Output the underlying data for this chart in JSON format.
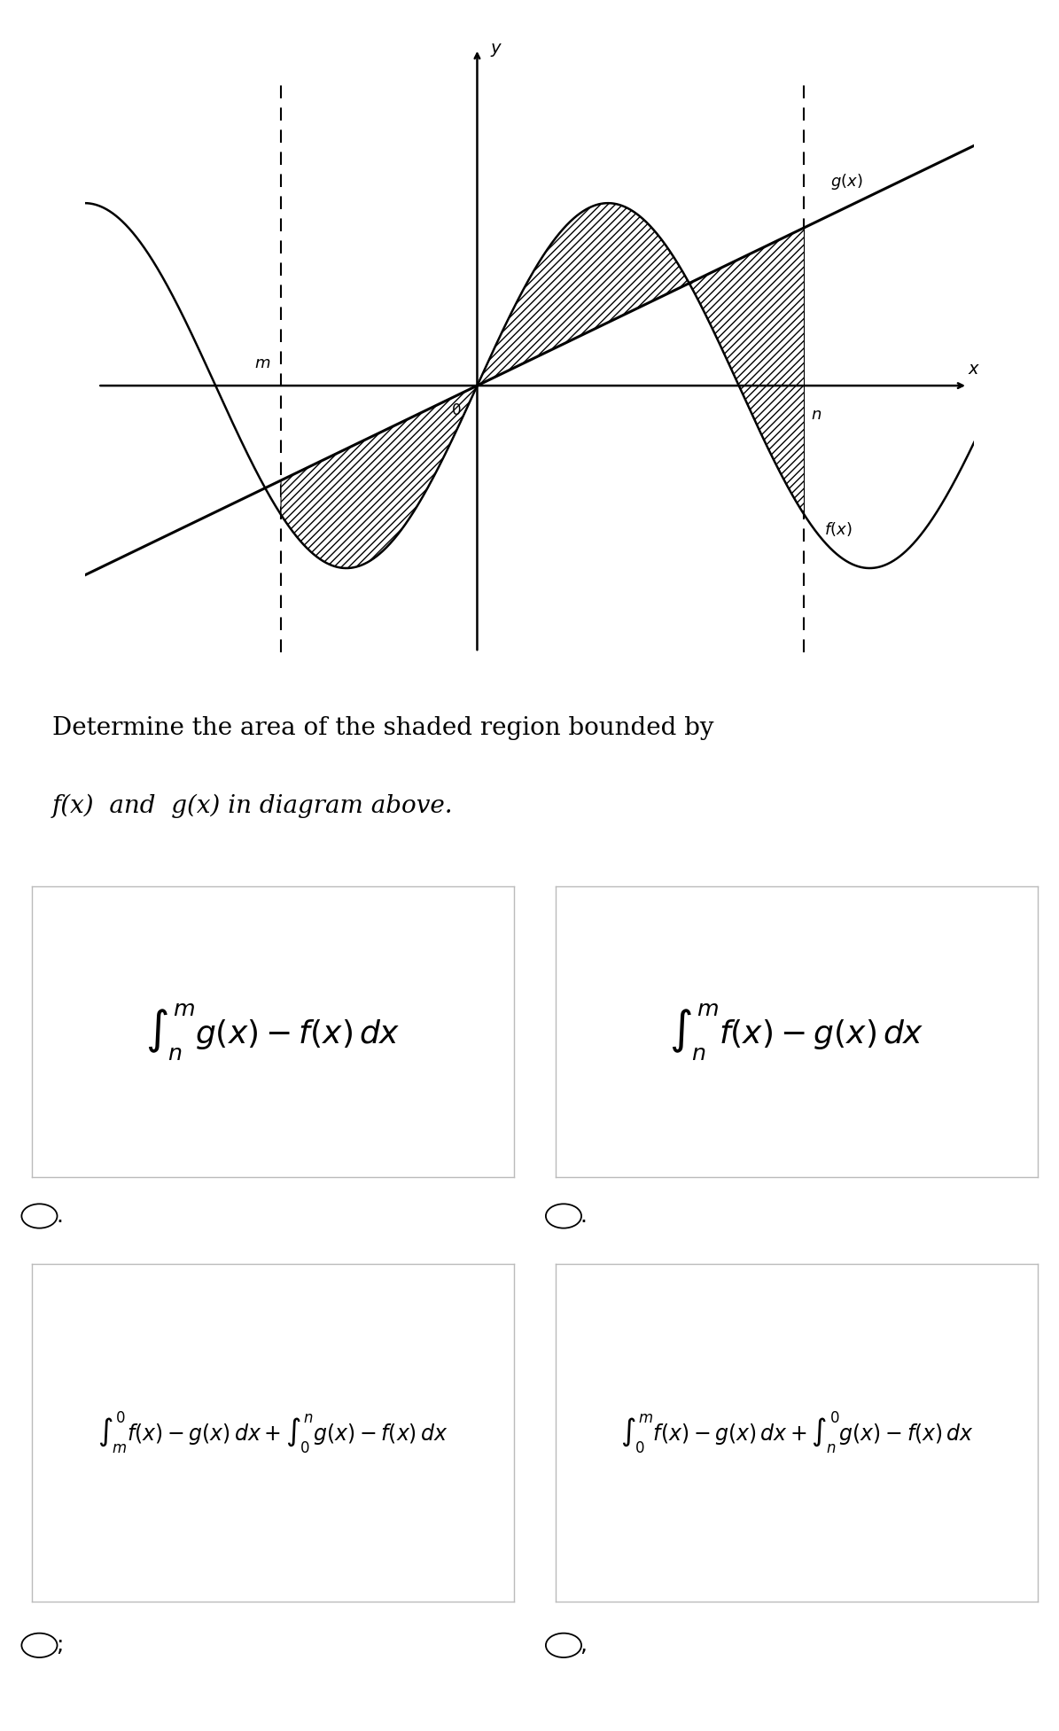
{
  "bg_color": "#ffffff",
  "graph_title_line1": "Determine the area of the shaded region bounded by",
  "graph_title_line2": "f(x)  and  g(x) in diagram above.",
  "option_formulas": [
    "$\\int_{n}^{m} g(x)-f(x)\\,dx$",
    "$\\int_{n}^{m} f(x)-g(x)\\,dx$",
    "$\\int_{m}^{0} f(x)-g(x)\\,dx+\\int_{0}^{n} g(x)-f(x)\\,dx$",
    "$\\int_{0}^{m} f(x)-g(x)\\,dx+\\int_{n}^{0} g(x)-f(x)\\,dx$"
  ],
  "option_labels": [
    ".",
    ".",
    ";",
    ","
  ],
  "m_val": -1.5,
  "n_val": 2.5,
  "f_amplitude": 1.0,
  "g_slope": 0.45,
  "xlim": [
    -3.0,
    3.8
  ],
  "ylim": [
    -2.0,
    2.5
  ]
}
